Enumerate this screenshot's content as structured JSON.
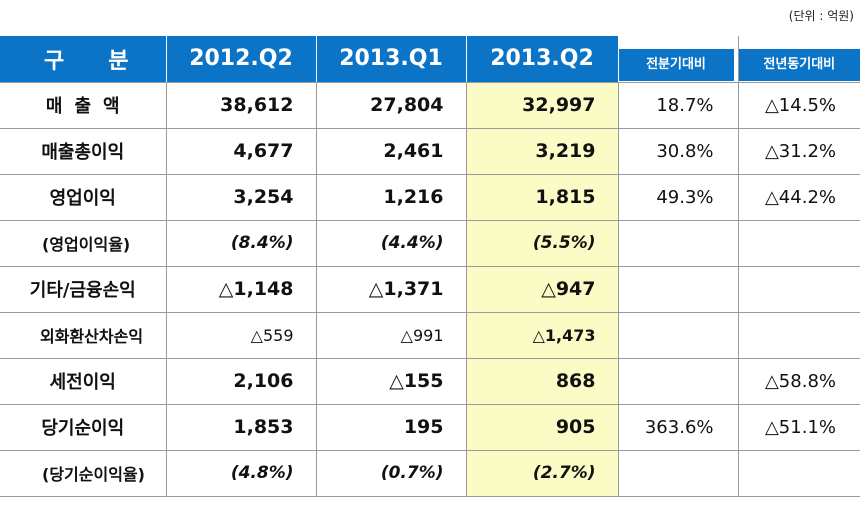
{
  "unit_note": "(단위 : 억원)",
  "header": {
    "category": "구분",
    "periods": [
      "2012.Q2",
      "2013.Q1",
      "2013.Q2"
    ],
    "qoq": "전분기대비",
    "yoy": "전년동기대비"
  },
  "rows": [
    {
      "label": "매출액",
      "v2012q2": "38,612",
      "v2013q1": "27,804",
      "v2013q2": "32,997",
      "qoq": "18.7%",
      "yoy": "△14.5%"
    },
    {
      "label": "매출총이익",
      "v2012q2": "4,677",
      "v2013q1": "2,461",
      "v2013q2": "3,219",
      "qoq": "30.8%",
      "yoy": "△31.2%"
    },
    {
      "label": "영업이익",
      "v2012q2": "3,254",
      "v2013q1": "1,216",
      "v2013q2": "1,815",
      "qoq": "49.3%",
      "yoy": "△44.2%"
    },
    {
      "label": "(영업이익율)",
      "v2012q2": "(8.4%)",
      "v2013q1": "(4.4%)",
      "v2013q2": "(5.5%)",
      "qoq": "",
      "yoy": ""
    },
    {
      "label": "기타/금융손익",
      "v2012q2": "△1,148",
      "v2013q1": "△1,371",
      "v2013q2": "△947",
      "qoq": "",
      "yoy": ""
    },
    {
      "label": "외화환산차손익",
      "v2012q2": "△559",
      "v2013q1": "△991",
      "v2013q2": "△1,473",
      "qoq": "",
      "yoy": ""
    },
    {
      "label": "세전이익",
      "v2012q2": "2,106",
      "v2013q1": "△155",
      "v2013q2": "868",
      "qoq": "",
      "yoy": "△58.8%"
    },
    {
      "label": "당기순이익",
      "v2012q2": "1,853",
      "v2013q1": "195",
      "v2013q2": "905",
      "qoq": "363.6%",
      "yoy": "△51.1%"
    },
    {
      "label": "(당기순이익율)",
      "v2012q2": "(4.8%)",
      "v2013q1": "(0.7%)",
      "v2013q2": "(2.7%)",
      "qoq": "",
      "yoy": ""
    }
  ],
  "colors": {
    "header_blue": "#0c74c6",
    "highlight_yellow": "#fbfbc6"
  }
}
